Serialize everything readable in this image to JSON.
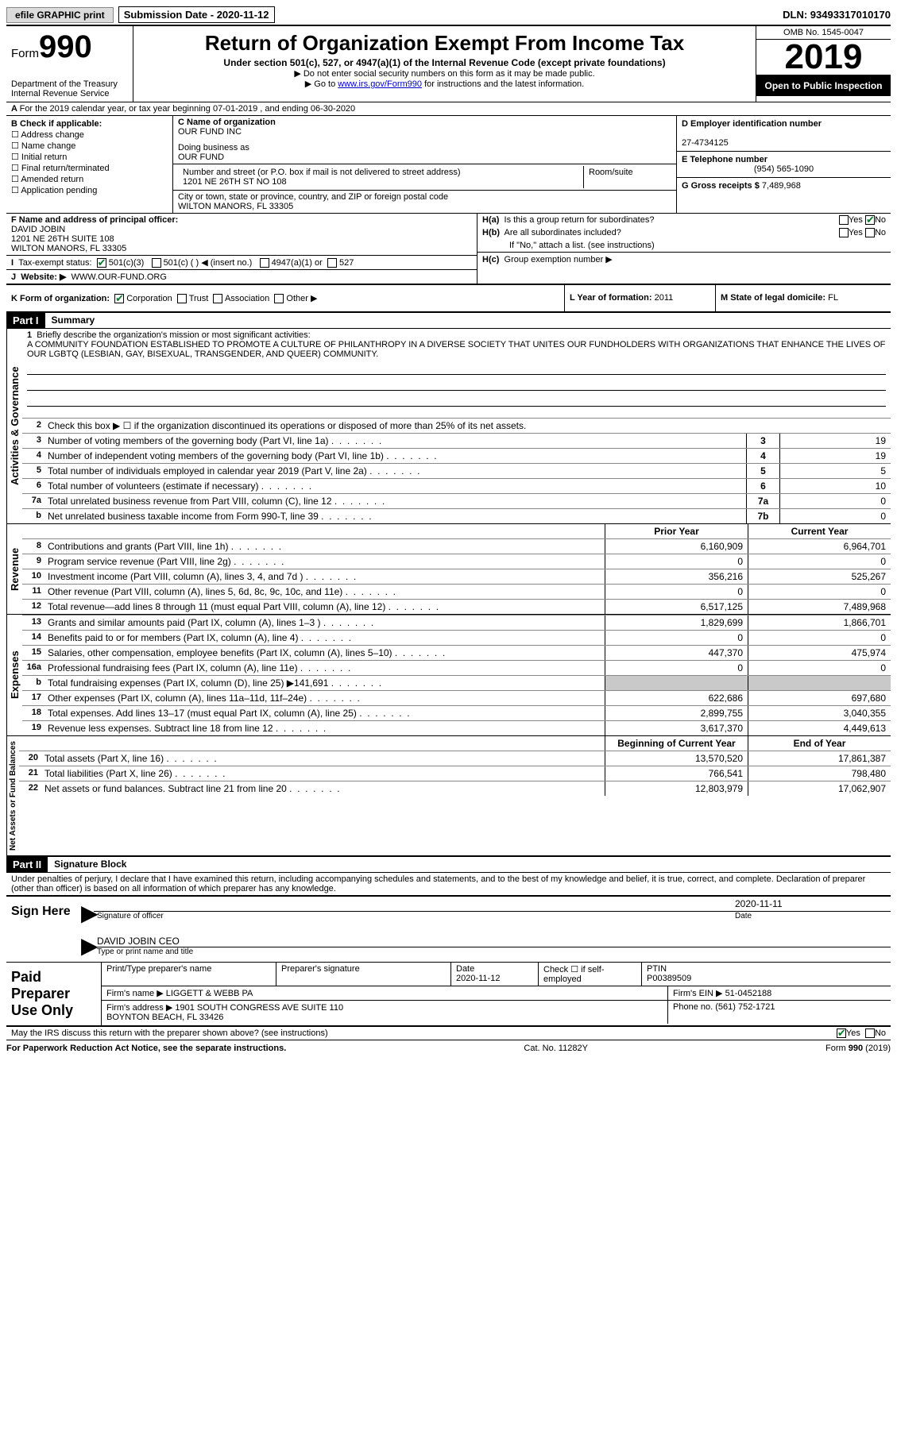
{
  "topbar": {
    "efile": "efile GRAPHIC print",
    "sub_label": "Submission Date - 2020-11-12",
    "dln": "DLN: 93493317010170"
  },
  "header": {
    "form_prefix": "Form",
    "form_no": "990",
    "dept": "Department of the Treasury\nInternal Revenue Service",
    "title": "Return of Organization Exempt From Income Tax",
    "sub": "Under section 501(c), 527, or 4947(a)(1) of the Internal Revenue Code (except private foundations)",
    "note1": "▶ Do not enter social security numbers on this form as it may be made public.",
    "note2_pre": "▶ Go to ",
    "note2_link": "www.irs.gov/Form990",
    "note2_post": " for instructions and the latest information.",
    "omb": "OMB No. 1545-0047",
    "year": "2019",
    "open": "Open to Public Inspection"
  },
  "A": "For the 2019 calendar year, or tax year beginning 07-01-2019   , and ending 06-30-2020",
  "B": {
    "label": "B Check if applicable:",
    "items": [
      "Address change",
      "Name change",
      "Initial return",
      "Final return/terminated",
      "Amended return",
      "Application pending"
    ]
  },
  "C": {
    "name_lbl": "C Name of organization",
    "name": "OUR FUND INC",
    "dba_lbl": "Doing business as",
    "dba": "OUR FUND",
    "street_lbl": "Number and street (or P.O. box if mail is not delivered to street address)",
    "street": "1201 NE 26TH ST NO 108",
    "room_lbl": "Room/suite",
    "city_lbl": "City or town, state or province, country, and ZIP or foreign postal code",
    "city": "WILTON MANORS, FL  33305"
  },
  "D": {
    "lbl": "D Employer identification number",
    "val": "27-4734125"
  },
  "E": {
    "lbl": "E Telephone number",
    "val": "(954) 565-1090"
  },
  "G": {
    "lbl": "G Gross receipts $",
    "val": "7,489,968"
  },
  "F": {
    "lbl": "F  Name and address of principal officer:",
    "name": "DAVID JOBIN",
    "addr1": "1201 NE 26TH SUITE 108",
    "addr2": "WILTON MANORS, FL  33305"
  },
  "H": {
    "a": "Is this a group return for subordinates?",
    "b": "Are all subordinates included?",
    "b2": "If \"No,\" attach a list. (see instructions)",
    "c": "Group exemption number ▶"
  },
  "I": {
    "lbl": "Tax-exempt status:",
    "opts": [
      "501(c)(3)",
      "501(c) (  ) ◀ (insert no.)",
      "4947(a)(1) or",
      "527"
    ]
  },
  "J": {
    "lbl": "Website: ▶",
    "val": "WWW.OUR-FUND.ORG"
  },
  "K": {
    "lbl": "K Form of organization:",
    "opts": [
      "Corporation",
      "Trust",
      "Association",
      "Other ▶"
    ]
  },
  "L": {
    "lbl": "L Year of formation:",
    "val": "2011"
  },
  "M": {
    "lbl": "M State of legal domicile:",
    "val": "FL"
  },
  "part1": {
    "hdr": "Part I",
    "title": "Summary",
    "mission_lbl": "Briefly describe the organization's mission or most significant activities:",
    "mission": "A COMMUNITY FOUNDATION ESTABLISHED TO PROMOTE A CULTURE OF PHILANTHROPY IN A DIVERSE SOCIETY THAT UNITES OUR FUNDHOLDERS WITH ORGANIZATIONS THAT ENHANCE THE LIVES OF OUR LGBTQ (LESBIAN, GAY, BISEXUAL, TRANSGENDER, AND QUEER) COMMUNITY.",
    "l2": "Check this box ▶ ☐  if the organization discontinued its operations or disposed of more than 25% of its net assets.",
    "gov_lines": [
      {
        "n": "3",
        "t": "Number of voting members of the governing body (Part VI, line 1a)",
        "c": "3",
        "v": "19"
      },
      {
        "n": "4",
        "t": "Number of independent voting members of the governing body (Part VI, line 1b)",
        "c": "4",
        "v": "19"
      },
      {
        "n": "5",
        "t": "Total number of individuals employed in calendar year 2019 (Part V, line 2a)",
        "c": "5",
        "v": "5"
      },
      {
        "n": "6",
        "t": "Total number of volunteers (estimate if necessary)",
        "c": "6",
        "v": "10"
      },
      {
        "n": "7a",
        "t": "Total unrelated business revenue from Part VIII, column (C), line 12",
        "c": "7a",
        "v": "0"
      },
      {
        "n": "b",
        "t": "Net unrelated business taxable income from Form 990-T, line 39",
        "c": "7b",
        "v": "0"
      }
    ],
    "col_hdr": {
      "prior": "Prior Year",
      "curr": "Current Year"
    },
    "rev_lines": [
      {
        "n": "8",
        "t": "Contributions and grants (Part VIII, line 1h)",
        "p": "6,160,909",
        "c": "6,964,701"
      },
      {
        "n": "9",
        "t": "Program service revenue (Part VIII, line 2g)",
        "p": "0",
        "c": "0"
      },
      {
        "n": "10",
        "t": "Investment income (Part VIII, column (A), lines 3, 4, and 7d )",
        "p": "356,216",
        "c": "525,267"
      },
      {
        "n": "11",
        "t": "Other revenue (Part VIII, column (A), lines 5, 6d, 8c, 9c, 10c, and 11e)",
        "p": "0",
        "c": "0"
      },
      {
        "n": "12",
        "t": "Total revenue—add lines 8 through 11 (must equal Part VIII, column (A), line 12)",
        "p": "6,517,125",
        "c": "7,489,968"
      }
    ],
    "exp_lines": [
      {
        "n": "13",
        "t": "Grants and similar amounts paid (Part IX, column (A), lines 1–3 )",
        "p": "1,829,699",
        "c": "1,866,701"
      },
      {
        "n": "14",
        "t": "Benefits paid to or for members (Part IX, column (A), line 4)",
        "p": "0",
        "c": "0"
      },
      {
        "n": "15",
        "t": "Salaries, other compensation, employee benefits (Part IX, column (A), lines 5–10)",
        "p": "447,370",
        "c": "475,974"
      },
      {
        "n": "16a",
        "t": "Professional fundraising fees (Part IX, column (A), line 11e)",
        "p": "0",
        "c": "0"
      },
      {
        "n": "b",
        "t": "Total fundraising expenses (Part IX, column (D), line 25) ▶141,691",
        "p": "",
        "c": "",
        "grey": true
      },
      {
        "n": "17",
        "t": "Other expenses (Part IX, column (A), lines 11a–11d, 11f–24e)",
        "p": "622,686",
        "c": "697,680"
      },
      {
        "n": "18",
        "t": "Total expenses. Add lines 13–17 (must equal Part IX, column (A), line 25)",
        "p": "2,899,755",
        "c": "3,040,355"
      },
      {
        "n": "19",
        "t": "Revenue less expenses. Subtract line 18 from line 12",
        "p": "3,617,370",
        "c": "4,449,613"
      }
    ],
    "net_hdr": {
      "b": "Beginning of Current Year",
      "e": "End of Year"
    },
    "net_lines": [
      {
        "n": "20",
        "t": "Total assets (Part X, line 16)",
        "p": "13,570,520",
        "c": "17,861,387"
      },
      {
        "n": "21",
        "t": "Total liabilities (Part X, line 26)",
        "p": "766,541",
        "c": "798,480"
      },
      {
        "n": "22",
        "t": "Net assets or fund balances. Subtract line 21 from line 20",
        "p": "12,803,979",
        "c": "17,062,907"
      }
    ],
    "tabs": {
      "gov": "Activities & Governance",
      "rev": "Revenue",
      "exp": "Expenses",
      "net": "Net Assets or Fund Balances"
    }
  },
  "part2": {
    "hdr": "Part II",
    "title": "Signature Block",
    "decl": "Under penalties of perjury, I declare that I have examined this return, including accompanying schedules and statements, and to the best of my knowledge and belief, it is true, correct, and complete. Declaration of preparer (other than officer) is based on all information of which preparer has any knowledge.",
    "sign_here": "Sign Here",
    "sig_officer": "Signature of officer",
    "sig_date": "2020-11-11",
    "date_lbl": "Date",
    "name_title": "DAVID JOBIN  CEO",
    "name_title_lbl": "Type or print name and title",
    "paid": "Paid Preparer Use Only",
    "p_name_lbl": "Print/Type preparer's name",
    "p_sig_lbl": "Preparer's signature",
    "p_date": "Date\n2020-11-12",
    "p_self": "Check ☐ if self-employed",
    "ptin_lbl": "PTIN",
    "ptin": "P00389509",
    "firm_name_lbl": "Firm's name   ▶",
    "firm_name": "LIGGETT & WEBB PA",
    "firm_ein_lbl": "Firm's EIN ▶",
    "firm_ein": "51-0452188",
    "firm_addr_lbl": "Firm's address ▶",
    "firm_addr": "1901 SOUTH CONGRESS AVE SUITE 110\nBOYNTON BEACH, FL  33426",
    "phone_lbl": "Phone no.",
    "phone": "(561) 752-1721",
    "discuss": "May the IRS discuss this return with the preparer shown above? (see instructions)"
  },
  "footer": {
    "left": "For Paperwork Reduction Act Notice, see the separate instructions.",
    "mid": "Cat. No. 11282Y",
    "right": "Form 990 (2019)"
  }
}
